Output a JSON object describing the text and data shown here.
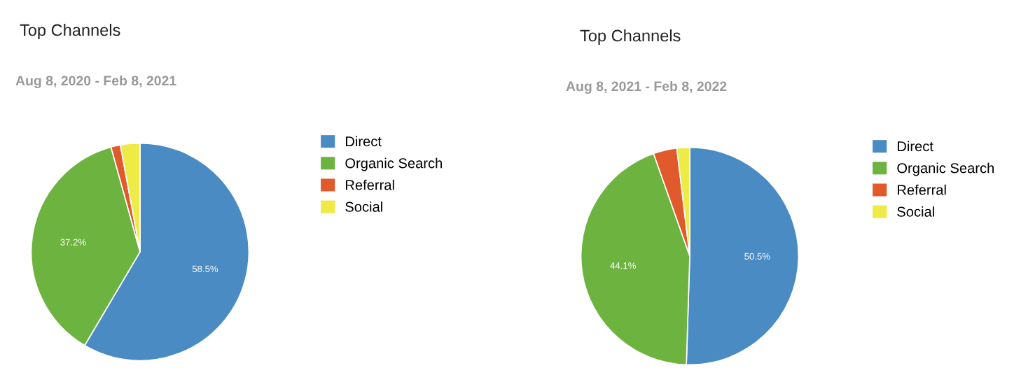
{
  "chart_data": [
    {
      "type": "pie",
      "title": "Top Channels",
      "subtitle": "Aug 8, 2020 - Feb 8, 2021",
      "categories": [
        "Direct",
        "Organic Search",
        "Referral",
        "Social"
      ],
      "values": [
        58.5,
        37.2,
        1.4,
        2.9
      ],
      "value_labels": [
        "58.5%",
        "37.2%",
        null,
        null
      ],
      "colors": [
        "#4a8bc4",
        "#6db33f",
        "#e05a2b",
        "#eeea46"
      ],
      "legend": "right"
    },
    {
      "type": "pie",
      "title": "Top Channels",
      "subtitle": "Aug 8, 2021 - Feb 8, 2022",
      "categories": [
        "Direct",
        "Organic Search",
        "Referral",
        "Social"
      ],
      "values": [
        50.5,
        44.1,
        3.5,
        1.9
      ],
      "value_labels": [
        "50.5%",
        "44.1%",
        null,
        null
      ],
      "colors": [
        "#4a8bc4",
        "#6db33f",
        "#e05a2b",
        "#eeea46"
      ],
      "legend": "right"
    }
  ]
}
